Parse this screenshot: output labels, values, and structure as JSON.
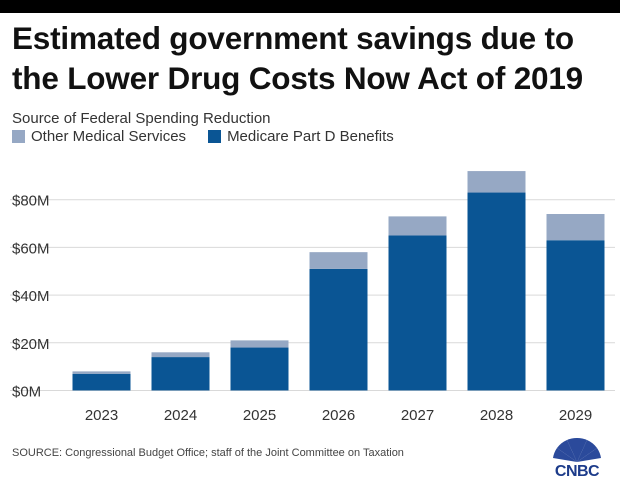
{
  "chart_data": {
    "type": "bar",
    "stacked": true,
    "title": "Estimated government savings due to the Lower Drug Costs Now Act of 2019",
    "legend_title": "Source of Federal Spending Reduction",
    "legend_placement": "top-left",
    "categories": [
      "2023",
      "2024",
      "2025",
      "2026",
      "2027",
      "2028",
      "2029"
    ],
    "series": [
      {
        "name": "Medicare Part D Benefits",
        "color": "#0a5594",
        "values": [
          7,
          14,
          18,
          51,
          65,
          83,
          63
        ]
      },
      {
        "name": "Other Medical Services",
        "color": "#96a8c4",
        "values": [
          1,
          2,
          3,
          7,
          8,
          9,
          11
        ]
      }
    ],
    "legend_order": [
      1,
      0
    ],
    "yticks": [
      {
        "value": 0,
        "label": "$0M"
      },
      {
        "value": 20,
        "label": "$20M"
      },
      {
        "value": 40,
        "label": "$40M"
      },
      {
        "value": 60,
        "label": "$60M"
      },
      {
        "value": 80,
        "label": "$80M"
      }
    ],
    "ylim": [
      -4,
      100
    ],
    "grid": true,
    "xlabel": "",
    "ylabel": ""
  },
  "source": "SOURCE: Congressional Budget Office; staff of the Joint Committee on Taxation",
  "logo": {
    "text": "CNBC",
    "icon": "nbc-peacock-icon"
  },
  "colors": {
    "topbar": "#000000",
    "grid": "#d9d9d9",
    "axis_text": "#333333"
  }
}
